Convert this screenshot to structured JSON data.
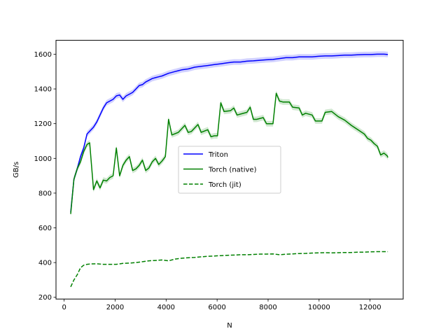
{
  "chart_data": {
    "type": "line",
    "xlabel": "N",
    "ylabel": "GB/s",
    "xlim": [
      -320,
      13300
    ],
    "ylim": [
      190,
      1680
    ],
    "xticks": [
      0,
      2000,
      4000,
      6000,
      8000,
      10000,
      12000
    ],
    "yticks": [
      200,
      400,
      600,
      800,
      1000,
      1200,
      1400,
      1600
    ],
    "grid": false,
    "legend_position": "center",
    "series": [
      {
        "name": "Triton",
        "color": "#0000ff",
        "linestyle": "solid",
        "points": [
          [
            256,
            690
          ],
          [
            384,
            880
          ],
          [
            512,
            940
          ],
          [
            640,
            1010
          ],
          [
            768,
            1060
          ],
          [
            896,
            1140
          ],
          [
            1024,
            1160
          ],
          [
            1152,
            1180
          ],
          [
            1280,
            1210
          ],
          [
            1408,
            1250
          ],
          [
            1536,
            1290
          ],
          [
            1664,
            1320
          ],
          [
            1792,
            1330
          ],
          [
            1920,
            1340
          ],
          [
            2048,
            1360
          ],
          [
            2176,
            1365
          ],
          [
            2304,
            1340
          ],
          [
            2432,
            1360
          ],
          [
            2560,
            1370
          ],
          [
            2688,
            1380
          ],
          [
            2816,
            1400
          ],
          [
            2944,
            1420
          ],
          [
            3072,
            1425
          ],
          [
            3200,
            1440
          ],
          [
            3328,
            1450
          ],
          [
            3456,
            1460
          ],
          [
            3584,
            1465
          ],
          [
            3712,
            1470
          ],
          [
            3840,
            1475
          ],
          [
            4096,
            1490
          ],
          [
            4352,
            1500
          ],
          [
            4608,
            1510
          ],
          [
            4864,
            1515
          ],
          [
            5120,
            1525
          ],
          [
            5376,
            1530
          ],
          [
            5632,
            1535
          ],
          [
            5888,
            1540
          ],
          [
            6144,
            1545
          ],
          [
            6400,
            1550
          ],
          [
            6656,
            1555
          ],
          [
            6912,
            1555
          ],
          [
            7168,
            1560
          ],
          [
            7424,
            1562
          ],
          [
            7680,
            1565
          ],
          [
            7936,
            1568
          ],
          [
            8192,
            1570
          ],
          [
            8448,
            1575
          ],
          [
            8704,
            1580
          ],
          [
            8960,
            1580
          ],
          [
            9216,
            1585
          ],
          [
            9472,
            1585
          ],
          [
            9728,
            1585
          ],
          [
            9984,
            1588
          ],
          [
            10240,
            1590
          ],
          [
            10496,
            1590
          ],
          [
            10752,
            1592
          ],
          [
            11008,
            1595
          ],
          [
            11264,
            1595
          ],
          [
            11520,
            1597
          ],
          [
            11776,
            1598
          ],
          [
            12032,
            1598
          ],
          [
            12288,
            1600
          ],
          [
            12544,
            1600
          ],
          [
            12700,
            1598
          ]
        ]
      },
      {
        "name": "Torch (native)",
        "color": "#008000",
        "linestyle": "solid",
        "points": [
          [
            256,
            680
          ],
          [
            384,
            880
          ],
          [
            512,
            940
          ],
          [
            640,
            980
          ],
          [
            768,
            1040
          ],
          [
            896,
            1080
          ],
          [
            1000,
            1090
          ],
          [
            1152,
            820
          ],
          [
            1280,
            870
          ],
          [
            1408,
            830
          ],
          [
            1536,
            875
          ],
          [
            1664,
            870
          ],
          [
            1792,
            890
          ],
          [
            1920,
            900
          ],
          [
            2048,
            1060
          ],
          [
            2176,
            900
          ],
          [
            2304,
            960
          ],
          [
            2432,
            990
          ],
          [
            2560,
            1010
          ],
          [
            2688,
            930
          ],
          [
            2816,
            940
          ],
          [
            2944,
            960
          ],
          [
            3072,
            990
          ],
          [
            3200,
            930
          ],
          [
            3328,
            945
          ],
          [
            3456,
            980
          ],
          [
            3584,
            1000
          ],
          [
            3712,
            965
          ],
          [
            3840,
            985
          ],
          [
            3968,
            1010
          ],
          [
            4096,
            1225
          ],
          [
            4224,
            1135
          ],
          [
            4480,
            1150
          ],
          [
            4736,
            1190
          ],
          [
            4864,
            1150
          ],
          [
            4992,
            1155
          ],
          [
            5248,
            1195
          ],
          [
            5376,
            1150
          ],
          [
            5632,
            1165
          ],
          [
            5760,
            1125
          ],
          [
            5888,
            1130
          ],
          [
            6016,
            1130
          ],
          [
            6144,
            1320
          ],
          [
            6272,
            1270
          ],
          [
            6528,
            1275
          ],
          [
            6656,
            1290
          ],
          [
            6784,
            1250
          ],
          [
            6912,
            1255
          ],
          [
            7168,
            1265
          ],
          [
            7296,
            1295
          ],
          [
            7424,
            1225
          ],
          [
            7552,
            1225
          ],
          [
            7808,
            1235
          ],
          [
            7936,
            1200
          ],
          [
            8192,
            1200
          ],
          [
            8320,
            1375
          ],
          [
            8448,
            1330
          ],
          [
            8576,
            1325
          ],
          [
            8832,
            1325
          ],
          [
            8960,
            1295
          ],
          [
            9216,
            1290
          ],
          [
            9344,
            1250
          ],
          [
            9472,
            1260
          ],
          [
            9728,
            1250
          ],
          [
            9856,
            1215
          ],
          [
            10112,
            1215
          ],
          [
            10240,
            1265
          ],
          [
            10496,
            1270
          ],
          [
            10752,
            1240
          ],
          [
            11008,
            1220
          ],
          [
            11264,
            1190
          ],
          [
            11520,
            1165
          ],
          [
            11776,
            1140
          ],
          [
            11904,
            1115
          ],
          [
            12032,
            1105
          ],
          [
            12160,
            1085
          ],
          [
            12288,
            1070
          ],
          [
            12416,
            1020
          ],
          [
            12544,
            1030
          ],
          [
            12672,
            1015
          ],
          [
            12700,
            1005
          ]
        ]
      },
      {
        "name": "Torch (jit)",
        "color": "#008000",
        "linestyle": "dashed",
        "points": [
          [
            256,
            260
          ],
          [
            384,
            300
          ],
          [
            512,
            330
          ],
          [
            640,
            370
          ],
          [
            768,
            385
          ],
          [
            896,
            390
          ],
          [
            1024,
            392
          ],
          [
            1280,
            393
          ],
          [
            1536,
            390
          ],
          [
            1792,
            390
          ],
          [
            2048,
            390
          ],
          [
            2304,
            395
          ],
          [
            2560,
            397
          ],
          [
            2816,
            400
          ],
          [
            3072,
            405
          ],
          [
            3328,
            410
          ],
          [
            3584,
            412
          ],
          [
            3840,
            415
          ],
          [
            4096,
            410
          ],
          [
            4352,
            420
          ],
          [
            4608,
            425
          ],
          [
            4864,
            428
          ],
          [
            5120,
            430
          ],
          [
            5376,
            433
          ],
          [
            5632,
            436
          ],
          [
            5888,
            438
          ],
          [
            6144,
            440
          ],
          [
            6400,
            442
          ],
          [
            6656,
            443
          ],
          [
            6912,
            445
          ],
          [
            7168,
            445
          ],
          [
            7424,
            447
          ],
          [
            7680,
            449
          ],
          [
            7936,
            449
          ],
          [
            8192,
            450
          ],
          [
            8448,
            445
          ],
          [
            8704,
            448
          ],
          [
            8960,
            450
          ],
          [
            9216,
            452
          ],
          [
            9472,
            453
          ],
          [
            9728,
            455
          ],
          [
            9984,
            456
          ],
          [
            10240,
            457
          ],
          [
            10496,
            456
          ],
          [
            10752,
            457
          ],
          [
            11008,
            458
          ],
          [
            11264,
            458
          ],
          [
            11520,
            460
          ],
          [
            11776,
            460
          ],
          [
            12032,
            462
          ],
          [
            12288,
            463
          ],
          [
            12544,
            463
          ],
          [
            12700,
            463
          ]
        ]
      }
    ]
  }
}
